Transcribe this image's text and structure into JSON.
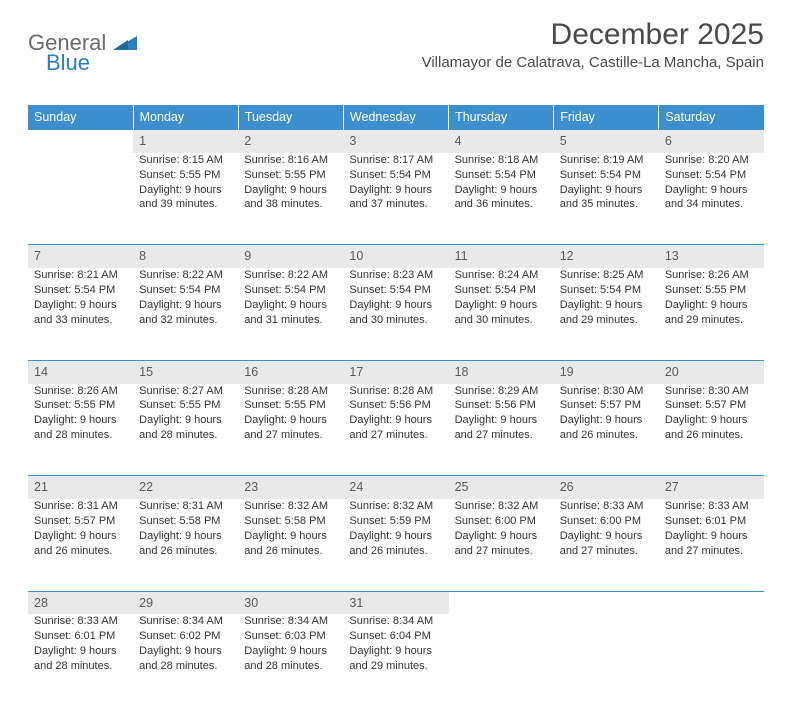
{
  "brand": {
    "part1": "General",
    "part2": "Blue"
  },
  "title": "December 2025",
  "location": "Villamayor de Calatrava, Castille-La Mancha, Spain",
  "theme": {
    "header_bg": "#3b8fce",
    "header_text": "#ffffff",
    "daynum_bg": "#e9e9e9",
    "daynum_text": "#5a5a5a",
    "body_text": "#333333",
    "rule_color": "#3b8fce",
    "page_bg": "#ffffff",
    "logo_gray": "#6a6a6a",
    "logo_blue": "#2a7fbf",
    "font_size_title": 30,
    "font_size_location": 15,
    "font_size_header": 12.5,
    "font_size_cell": 11
  },
  "weekdays": [
    "Sunday",
    "Monday",
    "Tuesday",
    "Wednesday",
    "Thursday",
    "Friday",
    "Saturday"
  ],
  "weeks": [
    {
      "nums": [
        "",
        "1",
        "2",
        "3",
        "4",
        "5",
        "6"
      ],
      "cells": [
        null,
        {
          "sunrise": "Sunrise: 8:15 AM",
          "sunset": "Sunset: 5:55 PM",
          "d1": "Daylight: 9 hours",
          "d2": "and 39 minutes."
        },
        {
          "sunrise": "Sunrise: 8:16 AM",
          "sunset": "Sunset: 5:55 PM",
          "d1": "Daylight: 9 hours",
          "d2": "and 38 minutes."
        },
        {
          "sunrise": "Sunrise: 8:17 AM",
          "sunset": "Sunset: 5:54 PM",
          "d1": "Daylight: 9 hours",
          "d2": "and 37 minutes."
        },
        {
          "sunrise": "Sunrise: 8:18 AM",
          "sunset": "Sunset: 5:54 PM",
          "d1": "Daylight: 9 hours",
          "d2": "and 36 minutes."
        },
        {
          "sunrise": "Sunrise: 8:19 AM",
          "sunset": "Sunset: 5:54 PM",
          "d1": "Daylight: 9 hours",
          "d2": "and 35 minutes."
        },
        {
          "sunrise": "Sunrise: 8:20 AM",
          "sunset": "Sunset: 5:54 PM",
          "d1": "Daylight: 9 hours",
          "d2": "and 34 minutes."
        }
      ]
    },
    {
      "nums": [
        "7",
        "8",
        "9",
        "10",
        "11",
        "12",
        "13"
      ],
      "cells": [
        {
          "sunrise": "Sunrise: 8:21 AM",
          "sunset": "Sunset: 5:54 PM",
          "d1": "Daylight: 9 hours",
          "d2": "and 33 minutes."
        },
        {
          "sunrise": "Sunrise: 8:22 AM",
          "sunset": "Sunset: 5:54 PM",
          "d1": "Daylight: 9 hours",
          "d2": "and 32 minutes."
        },
        {
          "sunrise": "Sunrise: 8:22 AM",
          "sunset": "Sunset: 5:54 PM",
          "d1": "Daylight: 9 hours",
          "d2": "and 31 minutes."
        },
        {
          "sunrise": "Sunrise: 8:23 AM",
          "sunset": "Sunset: 5:54 PM",
          "d1": "Daylight: 9 hours",
          "d2": "and 30 minutes."
        },
        {
          "sunrise": "Sunrise: 8:24 AM",
          "sunset": "Sunset: 5:54 PM",
          "d1": "Daylight: 9 hours",
          "d2": "and 30 minutes."
        },
        {
          "sunrise": "Sunrise: 8:25 AM",
          "sunset": "Sunset: 5:54 PM",
          "d1": "Daylight: 9 hours",
          "d2": "and 29 minutes."
        },
        {
          "sunrise": "Sunrise: 8:26 AM",
          "sunset": "Sunset: 5:55 PM",
          "d1": "Daylight: 9 hours",
          "d2": "and 29 minutes."
        }
      ]
    },
    {
      "nums": [
        "14",
        "15",
        "16",
        "17",
        "18",
        "19",
        "20"
      ],
      "cells": [
        {
          "sunrise": "Sunrise: 8:26 AM",
          "sunset": "Sunset: 5:55 PM",
          "d1": "Daylight: 9 hours",
          "d2": "and 28 minutes."
        },
        {
          "sunrise": "Sunrise: 8:27 AM",
          "sunset": "Sunset: 5:55 PM",
          "d1": "Daylight: 9 hours",
          "d2": "and 28 minutes."
        },
        {
          "sunrise": "Sunrise: 8:28 AM",
          "sunset": "Sunset: 5:55 PM",
          "d1": "Daylight: 9 hours",
          "d2": "and 27 minutes."
        },
        {
          "sunrise": "Sunrise: 8:28 AM",
          "sunset": "Sunset: 5:56 PM",
          "d1": "Daylight: 9 hours",
          "d2": "and 27 minutes."
        },
        {
          "sunrise": "Sunrise: 8:29 AM",
          "sunset": "Sunset: 5:56 PM",
          "d1": "Daylight: 9 hours",
          "d2": "and 27 minutes."
        },
        {
          "sunrise": "Sunrise: 8:30 AM",
          "sunset": "Sunset: 5:57 PM",
          "d1": "Daylight: 9 hours",
          "d2": "and 26 minutes."
        },
        {
          "sunrise": "Sunrise: 8:30 AM",
          "sunset": "Sunset: 5:57 PM",
          "d1": "Daylight: 9 hours",
          "d2": "and 26 minutes."
        }
      ]
    },
    {
      "nums": [
        "21",
        "22",
        "23",
        "24",
        "25",
        "26",
        "27"
      ],
      "cells": [
        {
          "sunrise": "Sunrise: 8:31 AM",
          "sunset": "Sunset: 5:57 PM",
          "d1": "Daylight: 9 hours",
          "d2": "and 26 minutes."
        },
        {
          "sunrise": "Sunrise: 8:31 AM",
          "sunset": "Sunset: 5:58 PM",
          "d1": "Daylight: 9 hours",
          "d2": "and 26 minutes."
        },
        {
          "sunrise": "Sunrise: 8:32 AM",
          "sunset": "Sunset: 5:58 PM",
          "d1": "Daylight: 9 hours",
          "d2": "and 26 minutes."
        },
        {
          "sunrise": "Sunrise: 8:32 AM",
          "sunset": "Sunset: 5:59 PM",
          "d1": "Daylight: 9 hours",
          "d2": "and 26 minutes."
        },
        {
          "sunrise": "Sunrise: 8:32 AM",
          "sunset": "Sunset: 6:00 PM",
          "d1": "Daylight: 9 hours",
          "d2": "and 27 minutes."
        },
        {
          "sunrise": "Sunrise: 8:33 AM",
          "sunset": "Sunset: 6:00 PM",
          "d1": "Daylight: 9 hours",
          "d2": "and 27 minutes."
        },
        {
          "sunrise": "Sunrise: 8:33 AM",
          "sunset": "Sunset: 6:01 PM",
          "d1": "Daylight: 9 hours",
          "d2": "and 27 minutes."
        }
      ]
    },
    {
      "nums": [
        "28",
        "29",
        "30",
        "31",
        "",
        "",
        ""
      ],
      "cells": [
        {
          "sunrise": "Sunrise: 8:33 AM",
          "sunset": "Sunset: 6:01 PM",
          "d1": "Daylight: 9 hours",
          "d2": "and 28 minutes."
        },
        {
          "sunrise": "Sunrise: 8:34 AM",
          "sunset": "Sunset: 6:02 PM",
          "d1": "Daylight: 9 hours",
          "d2": "and 28 minutes."
        },
        {
          "sunrise": "Sunrise: 8:34 AM",
          "sunset": "Sunset: 6:03 PM",
          "d1": "Daylight: 9 hours",
          "d2": "and 28 minutes."
        },
        {
          "sunrise": "Sunrise: 8:34 AM",
          "sunset": "Sunset: 6:04 PM",
          "d1": "Daylight: 9 hours",
          "d2": "and 29 minutes."
        },
        null,
        null,
        null
      ]
    }
  ]
}
